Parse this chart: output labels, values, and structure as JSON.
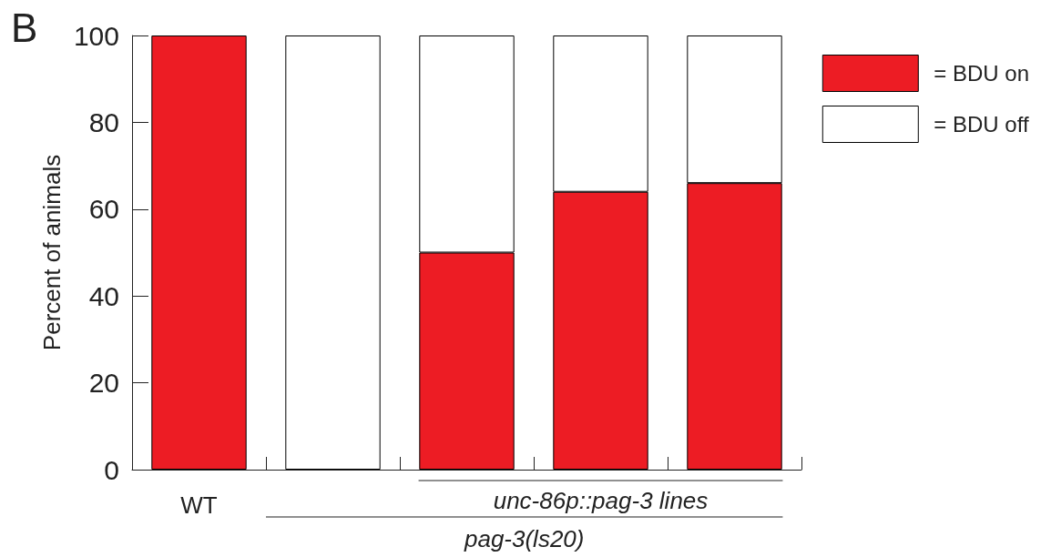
{
  "chart_data": {
    "type": "bar",
    "stacked": true,
    "ylabel": "Percent of animals",
    "categories": [
      "WT",
      null,
      null,
      null,
      null
    ],
    "series": [
      {
        "name": "= BDU on",
        "color": "#ed1c24",
        "values": [
          100,
          0,
          50,
          64,
          66
        ]
      },
      {
        "name": "= BDU off",
        "color": "#ffffff",
        "values": [
          0,
          100,
          50,
          36,
          34
        ]
      }
    ],
    "ylim": [
      0,
      100
    ],
    "yticks": [
      0,
      20,
      40,
      60,
      80,
      100
    ],
    "grid": false,
    "legend": "top right",
    "annotations": [
      "B",
      "unc-86p::pag-3 lines",
      "pag-3(ls20)"
    ]
  }
}
